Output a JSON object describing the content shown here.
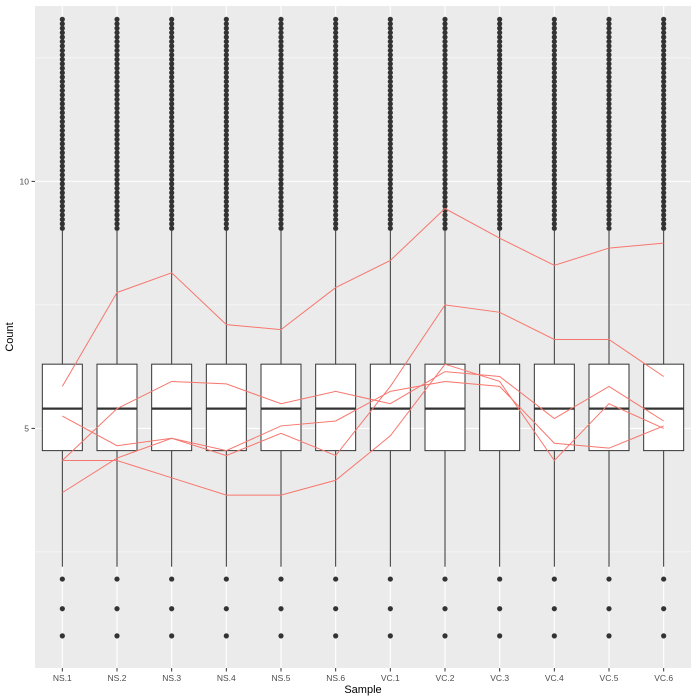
{
  "chart_data": {
    "type": "boxplot",
    "xlabel": "Sample",
    "ylabel": "Count",
    "categories": [
      "NS.1",
      "NS.2",
      "NS.3",
      "NS.4",
      "NS.5",
      "NS.6",
      "VC.1",
      "VC.2",
      "VC.3",
      "VC.4",
      "VC.5",
      "VC.6"
    ],
    "ylim": [
      0.15,
      13.55
    ],
    "yticks": [
      5,
      10
    ],
    "grid": true,
    "box_stats": {
      "lower_whisker": 2.2,
      "q1": 4.55,
      "median": 5.4,
      "q3": 6.3,
      "upper_whisker": 9.0
    },
    "outliers_low": [
      1.95,
      1.35,
      0.8
    ],
    "outliers_high_range": [
      9.05,
      13.3
    ],
    "series": [
      {
        "values": [
          5.85,
          7.75,
          8.15,
          7.1,
          7.0,
          7.85,
          8.4,
          9.45,
          8.85,
          8.3,
          8.65,
          8.75
        ]
      },
      {
        "values": [
          3.7,
          4.4,
          4.8,
          4.45,
          4.9,
          4.45,
          5.85,
          7.5,
          7.35,
          6.8,
          6.8,
          6.05
        ]
      },
      {
        "values": [
          4.35,
          5.4,
          5.95,
          5.9,
          5.5,
          5.75,
          5.5,
          6.15,
          6.05,
          5.2,
          5.85,
          5.15
        ]
      },
      {
        "values": [
          5.25,
          4.65,
          4.8,
          4.55,
          5.05,
          5.15,
          5.75,
          5.95,
          5.85,
          4.7,
          4.6,
          5.05
        ]
      },
      {
        "values": [
          4.35,
          4.35,
          4.0,
          3.65,
          3.65,
          3.95,
          4.85,
          6.3,
          5.95,
          4.35,
          5.5,
          5.0
        ]
      }
    ],
    "colors": {
      "panel": "#EBEBEB",
      "grid": "#FFFFFF",
      "box_fill": "#FFFFFF",
      "box_stroke": "#333333",
      "outlier": "#333333",
      "line": "#F8766D",
      "tick_text": "#4D4D4D"
    }
  }
}
